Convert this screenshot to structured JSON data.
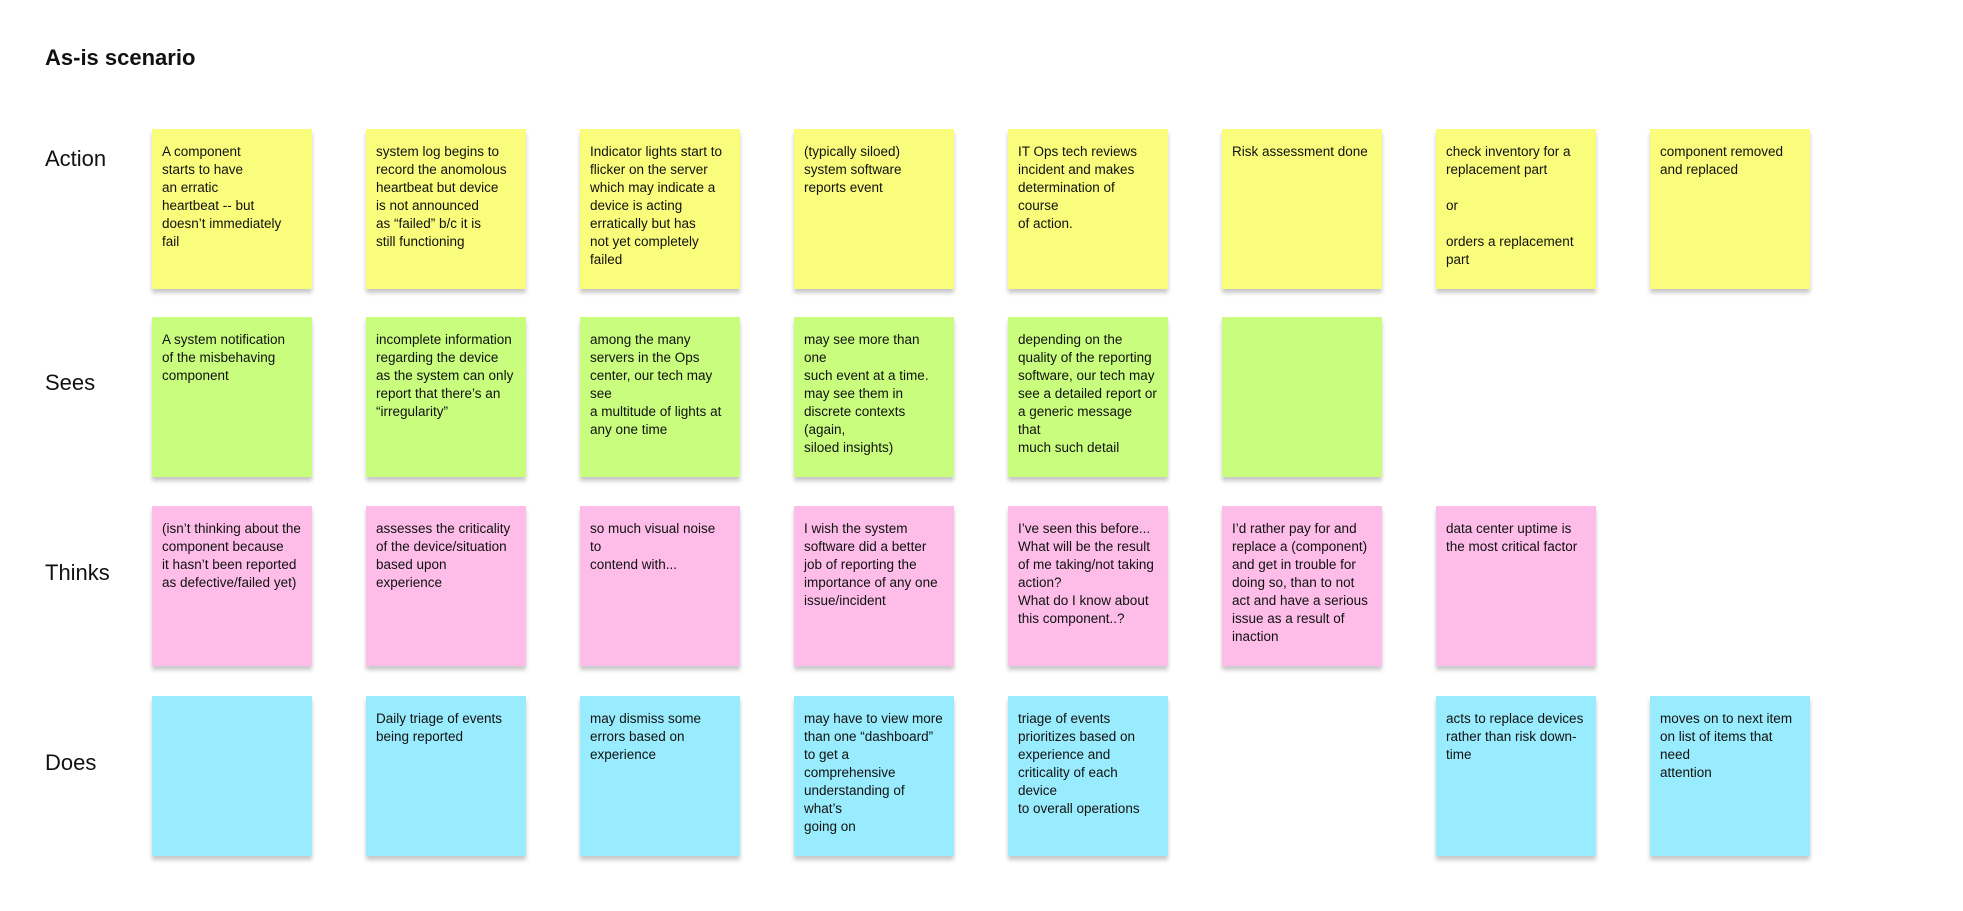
{
  "title": "As-is scenario",
  "colors": {
    "action": "#fafd7c",
    "sees": "#c9fd7e",
    "thinks": "#fdbde8",
    "does": "#99ecfd"
  },
  "rows": [
    {
      "key": "action",
      "label": "Action",
      "notes": [
        "A component\nstarts to have\nan erratic\nheartbeat -- but\ndoesn’t immediately\nfail",
        "system log begins to\nrecord the anomolous\nheartbeat but device\nis not announced\nas “failed” b/c it is\nstill functioning",
        "Indicator lights start to\nflicker on the server\nwhich may indicate a\ndevice is acting\nerratically but has\nnot yet completely\nfailed",
        "(typically siloed)\nsystem software\nreports event",
        "IT Ops tech reviews\nincident and makes\ndetermination of course\nof action.",
        "Risk assessment done",
        "check inventory for a\nreplacement part\n\nor\n\norders a replacement\npart",
        "component removed\nand replaced"
      ]
    },
    {
      "key": "sees",
      "label": "Sees",
      "notes": [
        "A system notification\nof the misbehaving\ncomponent",
        "incomplete information\nregarding the device\nas the system can only\nreport that there’s an\n“irregularity”",
        "among the many\nservers in the Ops\ncenter, our tech may see\na multitude of lights at\nany one time",
        "may see more than one\nsuch event at a time.\nmay see them in\ndiscrete contexts (again,\nsiloed insights)",
        "depending on the\nquality of the reporting\nsoftware, our tech may\nsee a detailed report or\na generic message that\nmuch such detail",
        "",
        null,
        null
      ]
    },
    {
      "key": "thinks",
      "label": "Thinks",
      "notes": [
        "(isn’t thinking about the\ncomponent because\nit hasn’t been reported\nas defective/failed yet)",
        "assesses the criticality\nof the device/situation\nbased upon experience",
        "so much visual noise to\ncontend with...",
        "I wish the system\nsoftware did a better\njob of reporting the\nimportance of any one\nissue/incident",
        "I’ve seen this before...\nWhat will be the result\nof me taking/not taking\naction?\nWhat do I know about\nthis component..?",
        "I’d rather pay for and\nreplace a (component)\nand get in trouble for\ndoing so, than to not\nact and have a serious\nissue as a result of\ninaction",
        "data center uptime is\nthe most critical factor",
        null
      ]
    },
    {
      "key": "does",
      "label": "Does",
      "notes": [
        "",
        "Daily triage of events\nbeing reported",
        "may dismiss some\nerrors based on\nexperience",
        "may have to view more\nthan one “dashboard”\nto get a comprehensive\nunderstanding of what’s\ngoing on",
        "triage of events\nprioritizes based on\nexperience and\ncriticality of each device\nto overall operations",
        null,
        "acts to replace devices\nrather than risk down-\ntime",
        "moves on to next item\non list of items that need\nattention"
      ]
    }
  ]
}
